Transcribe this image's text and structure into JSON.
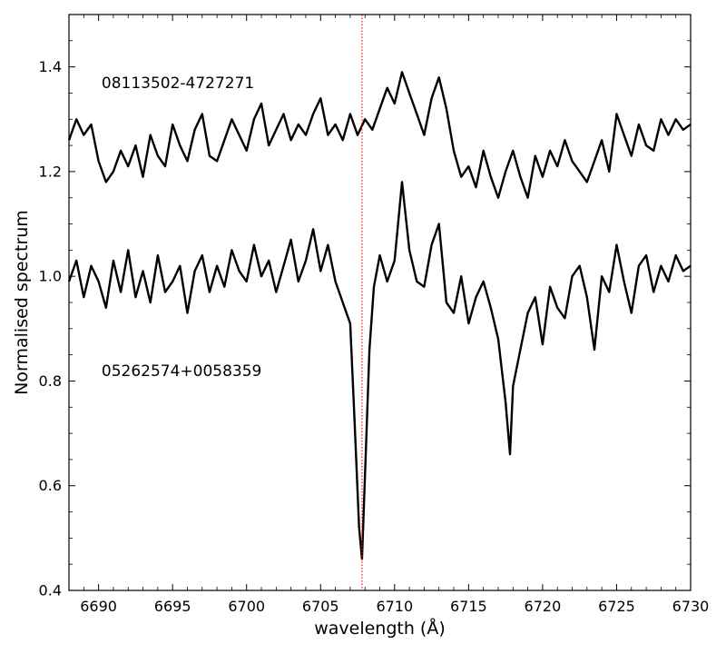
{
  "chart_data": {
    "type": "line",
    "title": "",
    "xlabel": "wavelength (Å)",
    "ylabel": "Normalised spectrum",
    "xlim": [
      6688,
      6730
    ],
    "ylim": [
      0.4,
      1.5
    ],
    "xticks": [
      6690,
      6695,
      6700,
      6705,
      6710,
      6715,
      6720,
      6725,
      6730
    ],
    "yticks": [
      0.4,
      0.6,
      0.8,
      1.0,
      1.2,
      1.4
    ],
    "xtick_labels": [
      "6690",
      "6695",
      "6700",
      "6705",
      "6710",
      "6715",
      "6720",
      "6725",
      "6730"
    ],
    "ytick_labels": [
      "0.4",
      "0.6",
      "0.8",
      "1.0",
      "1.2",
      "1.4"
    ],
    "reference_line": {
      "x": 6707.8,
      "color": "#e31a1c",
      "style": "dotted"
    },
    "annotations": [
      {
        "text": "08113502-4727271",
        "x": 6690.2,
        "y": 1.37
      },
      {
        "text": "05262574+0058359",
        "x": 6690.2,
        "y": 0.82
      }
    ],
    "series": [
      {
        "color": "#000000",
        "x": [
          6688.0,
          6688.5,
          6689.0,
          6689.5,
          6690.0,
          6690.5,
          6691.0,
          6691.5,
          6692.0,
          6692.5,
          6693.0,
          6693.5,
          6694.0,
          6694.5,
          6695.0,
          6695.5,
          6696.0,
          6696.5,
          6697.0,
          6697.5,
          6698.0,
          6698.5,
          6699.0,
          6699.5,
          6700.0,
          6700.5,
          6701.0,
          6701.5,
          6702.0,
          6702.5,
          6703.0,
          6703.5,
          6704.0,
          6704.5,
          6705.0,
          6705.5,
          6706.0,
          6706.5,
          6707.0,
          6707.5,
          6708.0,
          6708.5,
          6709.0,
          6709.5,
          6710.0,
          6710.5,
          6711.0,
          6711.5,
          6712.0,
          6712.5,
          6713.0,
          6713.5,
          6714.0,
          6714.5,
          6715.0,
          6715.5,
          6716.0,
          6716.5,
          6717.0,
          6717.5,
          6718.0,
          6718.5,
          6719.0,
          6719.5,
          6720.0,
          6720.5,
          6721.0,
          6721.5,
          6722.0,
          6722.5,
          6723.0,
          6723.5,
          6724.0,
          6724.5,
          6725.0,
          6725.5,
          6726.0,
          6726.5,
          6727.0,
          6727.5,
          6728.0,
          6728.5,
          6729.0,
          6729.5,
          6730.0
        ],
        "y": [
          1.26,
          1.3,
          1.27,
          1.29,
          1.22,
          1.18,
          1.2,
          1.24,
          1.21,
          1.25,
          1.19,
          1.27,
          1.23,
          1.21,
          1.29,
          1.25,
          1.22,
          1.28,
          1.31,
          1.23,
          1.22,
          1.26,
          1.3,
          1.27,
          1.24,
          1.3,
          1.33,
          1.25,
          1.28,
          1.31,
          1.26,
          1.29,
          1.27,
          1.31,
          1.34,
          1.27,
          1.29,
          1.26,
          1.31,
          1.27,
          1.3,
          1.28,
          1.32,
          1.36,
          1.33,
          1.39,
          1.35,
          1.31,
          1.27,
          1.34,
          1.38,
          1.32,
          1.24,
          1.19,
          1.21,
          1.17,
          1.24,
          1.19,
          1.15,
          1.2,
          1.24,
          1.19,
          1.15,
          1.23,
          1.19,
          1.24,
          1.21,
          1.26,
          1.22,
          1.2,
          1.18,
          1.22,
          1.26,
          1.2,
          1.31,
          1.27,
          1.23,
          1.29,
          1.25,
          1.24,
          1.3,
          1.27,
          1.3,
          1.28,
          1.29
        ]
      },
      {
        "color": "#000000",
        "x": [
          6688.0,
          6688.5,
          6689.0,
          6689.5,
          6690.0,
          6690.5,
          6691.0,
          6691.5,
          6692.0,
          6692.5,
          6693.0,
          6693.5,
          6694.0,
          6694.5,
          6695.0,
          6695.5,
          6696.0,
          6696.5,
          6697.0,
          6697.5,
          6698.0,
          6698.5,
          6699.0,
          6699.5,
          6700.0,
          6700.5,
          6701.0,
          6701.5,
          6702.0,
          6702.5,
          6703.0,
          6703.5,
          6704.0,
          6704.5,
          6705.0,
          6705.5,
          6706.0,
          6706.5,
          6707.0,
          6707.3,
          6707.6,
          6707.8,
          6708.0,
          6708.3,
          6708.6,
          6709.0,
          6709.5,
          6710.0,
          6710.5,
          6711.0,
          6711.5,
          6712.0,
          6712.5,
          6713.0,
          6713.5,
          6714.0,
          6714.5,
          6715.0,
          6715.5,
          6716.0,
          6716.5,
          6717.0,
          6717.5,
          6717.8,
          6718.0,
          6718.5,
          6719.0,
          6719.5,
          6720.0,
          6720.5,
          6721.0,
          6721.5,
          6722.0,
          6722.5,
          6723.0,
          6723.5,
          6724.0,
          6724.5,
          6725.0,
          6725.5,
          6726.0,
          6726.5,
          6727.0,
          6727.5,
          6728.0,
          6728.5,
          6729.0,
          6729.5,
          6730.0
        ],
        "y": [
          0.99,
          1.03,
          0.96,
          1.02,
          0.99,
          0.94,
          1.03,
          0.97,
          1.05,
          0.96,
          1.01,
          0.95,
          1.04,
          0.97,
          0.99,
          1.02,
          0.93,
          1.01,
          1.04,
          0.97,
          1.02,
          0.98,
          1.05,
          1.01,
          0.99,
          1.06,
          1.0,
          1.03,
          0.97,
          1.02,
          1.07,
          0.99,
          1.03,
          1.09,
          1.01,
          1.06,
          0.99,
          0.95,
          0.91,
          0.72,
          0.52,
          0.46,
          0.62,
          0.86,
          0.98,
          1.04,
          0.99,
          1.03,
          1.18,
          1.05,
          0.99,
          0.98,
          1.06,
          1.1,
          0.95,
          0.93,
          1.0,
          0.91,
          0.96,
          0.99,
          0.94,
          0.88,
          0.76,
          0.66,
          0.79,
          0.86,
          0.93,
          0.96,
          0.87,
          0.98,
          0.94,
          0.92,
          1.0,
          1.02,
          0.96,
          0.86,
          1.0,
          0.97,
          1.06,
          0.99,
          0.93,
          1.02,
          1.04,
          0.97,
          1.02,
          0.99,
          1.04,
          1.01,
          1.02
        ]
      }
    ]
  }
}
